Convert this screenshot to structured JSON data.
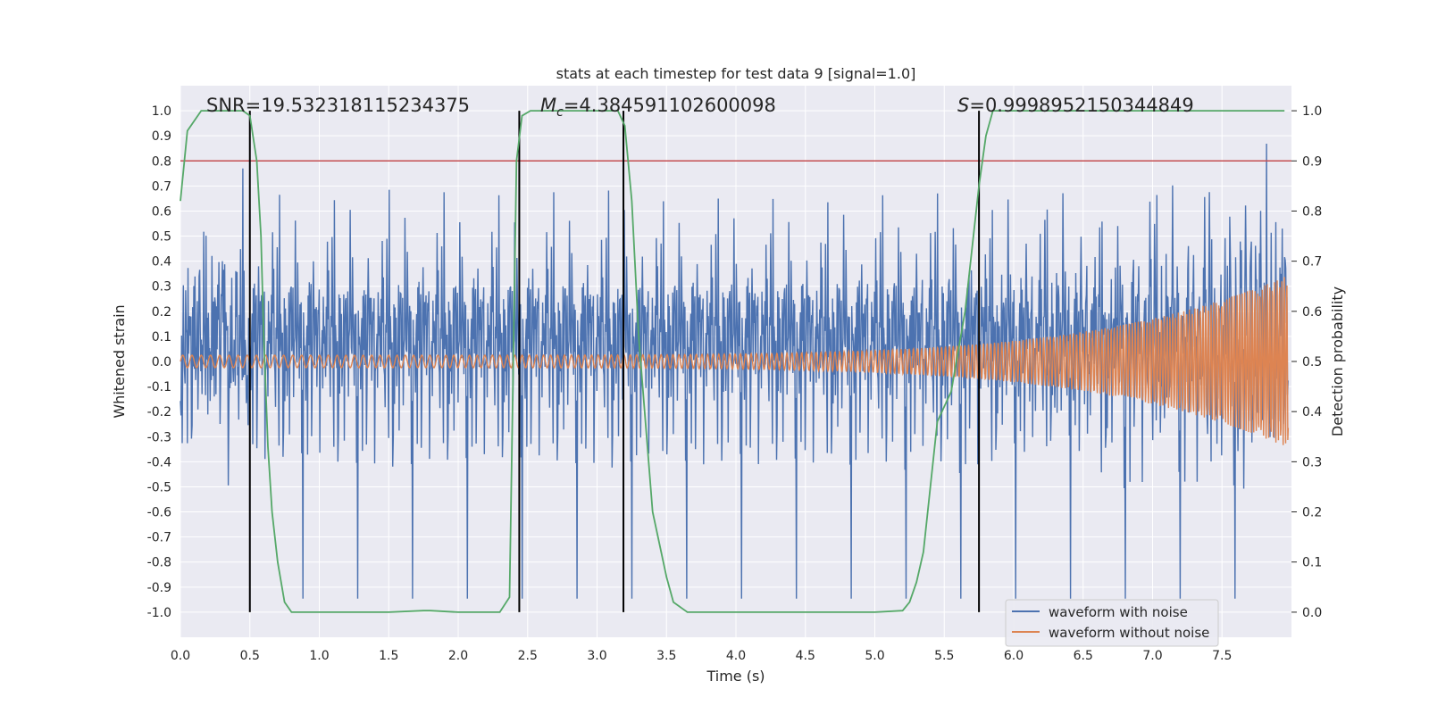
{
  "chart_data": {
    "type": "line",
    "title": "stats at each timestep for test data 9 [signal=1.0]",
    "xlabel": "Time (s)",
    "ylabel": "Whitened strain",
    "y2label": "Detection probability",
    "xlim": [
      0,
      8
    ],
    "ylim": [
      -1.1,
      1.1
    ],
    "y2lim": [
      -0.05,
      1.05
    ],
    "xticks": [
      "0.0",
      "0.5",
      "1.0",
      "1.5",
      "2.0",
      "2.5",
      "3.0",
      "3.5",
      "4.0",
      "4.5",
      "5.0",
      "5.5",
      "6.0",
      "6.5",
      "7.0",
      "7.5"
    ],
    "yticks": [
      "1.0",
      "0.9",
      "0.8",
      "0.7",
      "0.6",
      "0.5",
      "0.4",
      "0.3",
      "0.2",
      "0.1",
      "0.0",
      "-0.1",
      "-0.2",
      "-0.3",
      "-0.4",
      "-0.5",
      "-0.6",
      "-0.7",
      "-0.8",
      "-0.9",
      "-1.0"
    ],
    "y2ticks": [
      "1.0",
      "0.9",
      "0.8",
      "0.7",
      "0.6",
      "0.5",
      "0.4",
      "0.3",
      "0.2",
      "0.1",
      "0.0"
    ],
    "grid": true,
    "legend_position": "lower-right",
    "annotations": {
      "snr": "SNR=19.532318115234375",
      "mc_symbol": "M",
      "mc_sub": "c",
      "mc_value": "=4.384591102600098",
      "s_symbol": "S",
      "s_value": "=0.9998952150344849"
    },
    "threshold_line": {
      "value": 0.8,
      "color": "#c44e52"
    },
    "vertical_markers": [
      0.5,
      2.44,
      3.19,
      5.75
    ],
    "series": [
      {
        "name": "waveform with noise",
        "color": "#4c72b0",
        "noise_amplitude": 0.3,
        "envelope_start": 0.025,
        "envelope_end": 0.3
      },
      {
        "name": "waveform without noise",
        "color": "#dd8452",
        "envelope_start": 0.025,
        "envelope_end": 0.35
      },
      {
        "color": "#55a868",
        "axis": "right",
        "x": [
          0.0,
          0.05,
          0.15,
          0.3,
          0.45,
          0.5,
          0.55,
          0.58,
          0.6,
          0.63,
          0.66,
          0.7,
          0.75,
          0.8,
          1.0,
          1.5,
          1.75,
          1.8,
          2.0,
          2.3,
          2.37,
          2.42,
          2.46,
          2.52,
          2.6,
          3.0,
          3.15,
          3.2,
          3.25,
          3.3,
          3.4,
          3.5,
          3.55,
          3.65,
          4.0,
          4.5,
          5.0,
          5.2,
          5.25,
          5.3,
          5.35,
          5.4,
          5.45,
          5.55,
          5.65,
          5.75,
          5.8,
          5.85,
          6.0,
          7.0,
          7.95
        ],
        "y": [
          0.82,
          0.96,
          1.0,
          1.0,
          1.0,
          0.99,
          0.9,
          0.75,
          0.55,
          0.33,
          0.2,
          0.1,
          0.02,
          0.0,
          0.0,
          0.0,
          0.003,
          0.003,
          0.0,
          0.0,
          0.03,
          0.9,
          0.99,
          1.0,
          1.0,
          1.0,
          1.0,
          0.97,
          0.82,
          0.55,
          0.2,
          0.07,
          0.02,
          0.0,
          0.0,
          0.0,
          0.0,
          0.003,
          0.02,
          0.06,
          0.12,
          0.25,
          0.38,
          0.44,
          0.6,
          0.85,
          0.95,
          1.0,
          1.0,
          1.0,
          1.0
        ]
      }
    ]
  }
}
